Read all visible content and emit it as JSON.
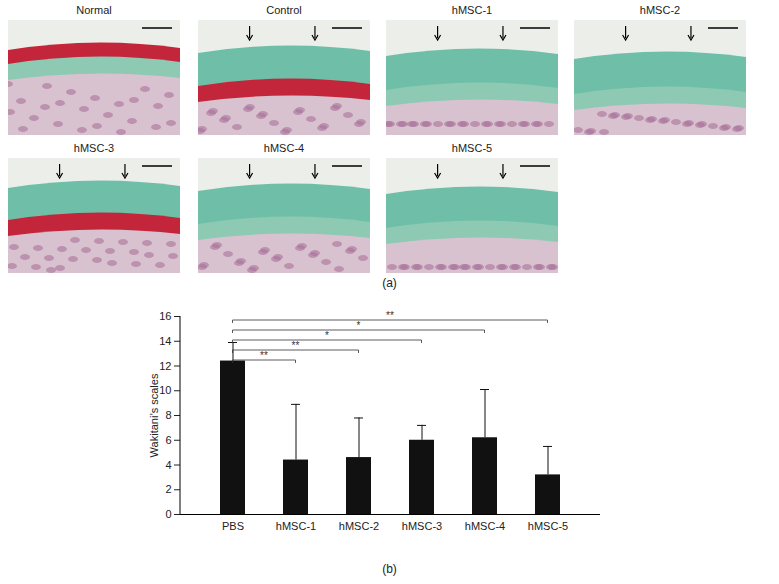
{
  "panel_a": {
    "label": "(a)",
    "images": [
      {
        "title": "Normal",
        "arrows": false
      },
      {
        "title": "Control",
        "arrows": true
      },
      {
        "title": "hMSC-1",
        "arrows": true
      },
      {
        "title": "hMSC-2",
        "arrows": true
      },
      {
        "title": "hMSC-3",
        "arrows": true
      },
      {
        "title": "hMSC-4",
        "arrows": true
      },
      {
        "title": "hMSC-5",
        "arrows": true
      }
    ]
  },
  "chart_data": {
    "type": "bar",
    "panel_label": "(b)",
    "y_label": "Wakitani’s scales",
    "categories": [
      "PBS",
      "hMSC-1",
      "hMSC-2",
      "hMSC-3",
      "hMSC-4",
      "hMSC-5"
    ],
    "values": [
      12.4,
      4.4,
      4.6,
      6.0,
      6.2,
      3.2
    ],
    "errors": [
      1.5,
      4.5,
      3.2,
      1.2,
      3.9,
      2.3
    ],
    "color": "#111111",
    "ylim": [
      0,
      16
    ],
    "yticks": [
      0,
      2,
      4,
      6,
      8,
      10,
      12,
      14,
      16
    ],
    "grid": false,
    "comparisons": [
      {
        "from": "PBS",
        "to": "hMSC-1",
        "label": "**"
      },
      {
        "from": "PBS",
        "to": "hMSC-2",
        "label": "**"
      },
      {
        "from": "PBS",
        "to": "hMSC-3",
        "label": "*"
      },
      {
        "from": "PBS",
        "to": "hMSC-4",
        "label": "*"
      },
      {
        "from": "PBS",
        "to": "hMSC-5",
        "label": "**"
      }
    ]
  }
}
